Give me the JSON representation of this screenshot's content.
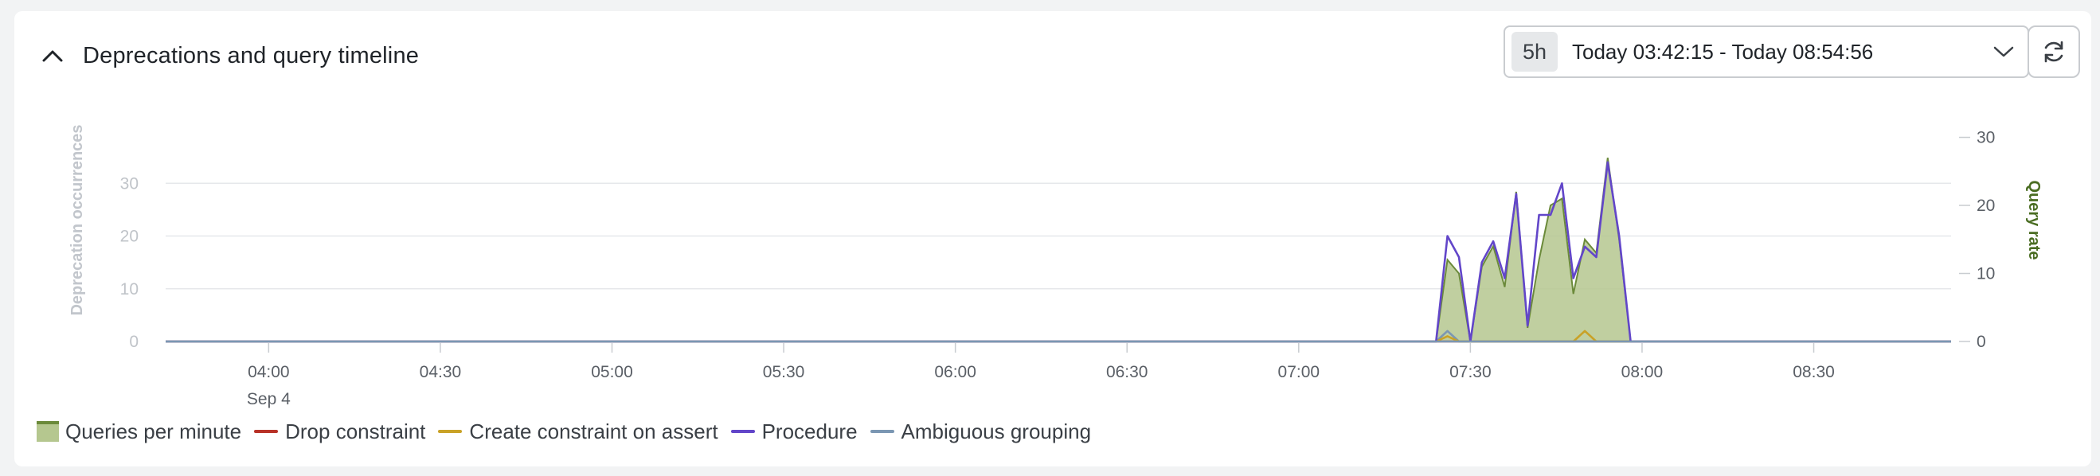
{
  "header": {
    "title": "Deprecations and query timeline",
    "range_badge": "5h",
    "range_text": "Today 03:42:15 - Today 08:54:56"
  },
  "icons": {
    "collapse": "chevron-up-icon",
    "dropdown": "chevron-down-icon",
    "refresh": "refresh-icon"
  },
  "colors": {
    "queries_fill": "#b5c78f",
    "queries_stroke": "#6b8a3a",
    "drop_constraint": "#b83228",
    "create_constraint": "#c9a227",
    "procedure": "#6246c9",
    "ambiguous_grouping": "#7b97b3",
    "axis_left_label": "#c2c6cc",
    "axis_right_label": "#4a6d22"
  },
  "legend": [
    {
      "label": "Queries per minute",
      "type": "area",
      "color": "#b5c78f",
      "border": "#6b8a3a"
    },
    {
      "label": "Drop constraint",
      "type": "line",
      "color": "#b83228"
    },
    {
      "label": "Create constraint on assert",
      "type": "line",
      "color": "#c9a227"
    },
    {
      "label": "Procedure",
      "type": "line",
      "color": "#6246c9"
    },
    {
      "label": "Ambiguous grouping",
      "type": "line",
      "color": "#7b97b3"
    }
  ],
  "chart_data": {
    "type": "area",
    "ylabel": "Deprecation occurrences",
    "y2label": "Query rate",
    "ylim": [
      0,
      40
    ],
    "y2lim": [
      0,
      31
    ],
    "yticks": [
      0,
      10,
      20,
      30
    ],
    "y2ticks": [
      0,
      10,
      20,
      30
    ],
    "xlim": [
      "03:42",
      "08:54"
    ],
    "xticks": [
      "04:00",
      "04:30",
      "05:00",
      "05:30",
      "06:00",
      "06:30",
      "07:00",
      "07:30",
      "08:00",
      "08:30"
    ],
    "xdate_label": "Sep 4",
    "grid": true,
    "legend_position": "bottom-left",
    "x": [
      "03:42",
      "07:24",
      "07:26",
      "07:28",
      "07:30",
      "07:32",
      "07:34",
      "07:36",
      "07:38",
      "07:40",
      "07:42",
      "07:44",
      "07:46",
      "07:48",
      "07:50",
      "07:52",
      "07:54",
      "07:56",
      "07:58",
      "08:00",
      "08:54"
    ],
    "series": [
      {
        "name": "Queries per minute",
        "axis": "right",
        "type": "area",
        "values": [
          0,
          0,
          12,
          10,
          0,
          11,
          14,
          8,
          22,
          2,
          12,
          20,
          21,
          7,
          15,
          13,
          27,
          15,
          0,
          0,
          0
        ]
      },
      {
        "name": "Procedure",
        "axis": "left",
        "type": "line",
        "values": [
          0,
          0,
          20,
          16,
          0,
          15,
          19,
          12,
          28,
          3,
          24,
          24,
          30,
          12,
          18,
          16,
          34,
          20,
          0,
          0,
          0
        ]
      },
      {
        "name": "Create constraint on assert",
        "axis": "left",
        "type": "line",
        "values": [
          0,
          0,
          1,
          0,
          0,
          0,
          0,
          0,
          0,
          0,
          0,
          0,
          0,
          0,
          2,
          0,
          0,
          0,
          0,
          0,
          0
        ]
      },
      {
        "name": "Ambiguous grouping",
        "axis": "left",
        "type": "line",
        "values": [
          0,
          0,
          2,
          0,
          0,
          0,
          0,
          0,
          0,
          0,
          0,
          0,
          0,
          0,
          0,
          0,
          0,
          0,
          0,
          0,
          0
        ]
      },
      {
        "name": "Drop constraint",
        "axis": "left",
        "type": "line",
        "values": [
          0,
          0,
          0,
          0,
          0,
          0,
          0,
          0,
          0,
          0,
          0,
          0,
          0,
          0,
          0,
          0,
          0,
          0,
          0,
          0,
          0
        ]
      }
    ]
  }
}
